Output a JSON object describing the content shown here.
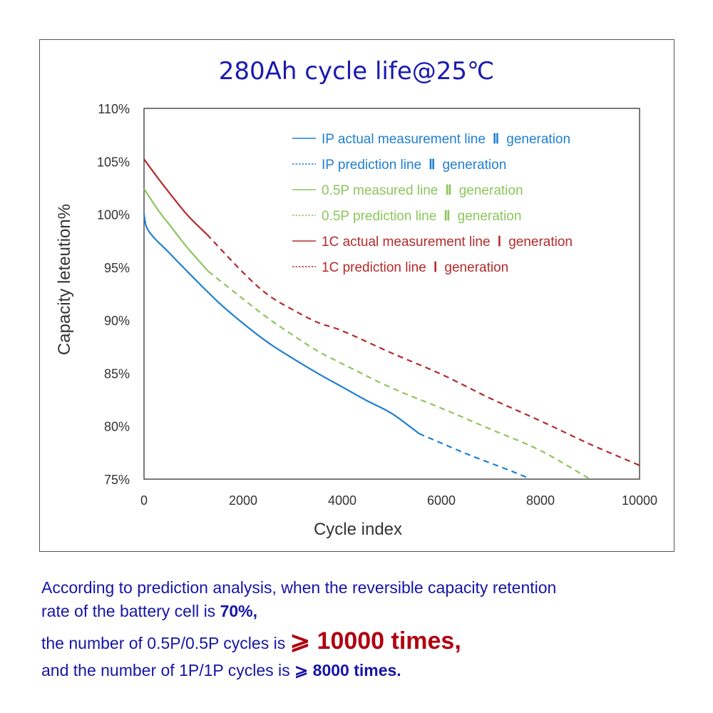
{
  "chart_data": {
    "type": "line",
    "title": "280Ah cycle life@25℃",
    "xlabel": "Cycle index",
    "ylabel": "Capacity leteution%",
    "xlim": [
      0,
      10000
    ],
    "ylim": [
      75,
      110
    ],
    "xticks": [
      0,
      2000,
      4000,
      6000,
      8000,
      10000
    ],
    "xtick_labels": [
      "0",
      "2000",
      "4000",
      "6000",
      "8000",
      "10000"
    ],
    "yticks": [
      75,
      80,
      85,
      90,
      95,
      100,
      105,
      110
    ],
    "ytick_labels": [
      "75%",
      "80%",
      "85%",
      "90%",
      "95%",
      "100%",
      "105%",
      "110%"
    ],
    "grid": false,
    "legend_position": "top-right",
    "series": [
      {
        "name": "IP actual measurement line Ⅱ generation",
        "legend_label": "IP actual measurement line",
        "gen": "Ⅱ",
        "color": "#1f7fd0",
        "style": "solid",
        "x": [
          0,
          50,
          200,
          500,
          1000,
          1500,
          2000,
          2500,
          3000,
          3500,
          4000,
          4500,
          5000,
          5550
        ],
        "y": [
          100.0,
          98.8,
          97.8,
          96.4,
          94.0,
          91.7,
          89.7,
          87.9,
          86.4,
          85.0,
          83.7,
          82.4,
          81.2,
          79.3
        ]
      },
      {
        "name": "IP prediction line Ⅱ generation",
        "legend_label": "IP prediction line",
        "gen": "Ⅱ",
        "color": "#1f7fd0",
        "style": "dashed",
        "x": [
          5550,
          6000,
          6500,
          7000,
          7500,
          7800
        ],
        "y": [
          79.3,
          78.4,
          77.4,
          76.5,
          75.6,
          75.0
        ]
      },
      {
        "name": "0.5P measured line Ⅱ generation",
        "legend_label": "0.5P measured line",
        "gen": "Ⅱ",
        "color": "#8cc65c",
        "style": "solid",
        "x": [
          0,
          300,
          600,
          900,
          1300
        ],
        "y": [
          102.4,
          100.3,
          98.5,
          96.7,
          94.6
        ]
      },
      {
        "name": "0.5P prediction line Ⅱ generation",
        "legend_label": "0.5P prediction line",
        "gen": "Ⅱ",
        "color": "#8cc65c",
        "style": "dashed",
        "x": [
          1300,
          2000,
          2500,
          3000,
          3500,
          4000,
          5000,
          6000,
          7000,
          8000,
          9000
        ],
        "y": [
          94.6,
          92.0,
          90.2,
          88.6,
          87.1,
          85.9,
          83.6,
          81.7,
          79.7,
          77.7,
          75.0
        ]
      },
      {
        "name": "1C actual measurement line Ⅰ generation",
        "legend_label": "1C actual measurement line",
        "gen": "Ⅰ",
        "color": "#b52a2a",
        "style": "solid",
        "x": [
          0,
          300,
          600,
          900,
          1270
        ],
        "y": [
          105.2,
          103.3,
          101.5,
          99.8,
          98.1
        ]
      },
      {
        "name": "1C prediction line Ⅰ generation",
        "legend_label": "1C prediction line",
        "gen": "Ⅰ",
        "color": "#b52a2a",
        "style": "dashed",
        "x": [
          1270,
          2000,
          2500,
          3000,
          3500,
          4000,
          5000,
          6000,
          7000,
          8000,
          9000,
          10000
        ],
        "y": [
          98.1,
          94.5,
          92.4,
          91.0,
          89.8,
          89.0,
          86.9,
          84.9,
          82.6,
          80.5,
          78.3,
          76.3
        ]
      }
    ]
  },
  "footer": {
    "line1": "According to prediction analysis, when the reversible capacity retention",
    "line2_pre": "rate of the battery cell is ",
    "line2_bold": "70%,",
    "line3_pre": "the number of 0.5P/0.5P cycles is ",
    "line3_big": "⩾ 10000 times,",
    "line4_pre": "and the number of 1P/1P cycles is ",
    "line4_bold": "⩾ 8000 times."
  }
}
